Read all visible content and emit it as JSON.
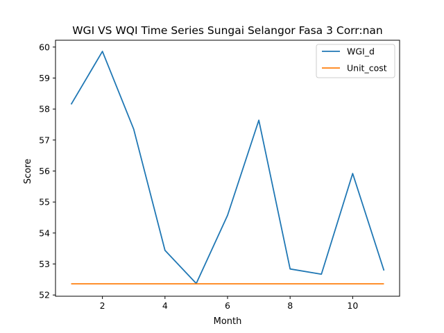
{
  "chart_data": {
    "type": "line",
    "title": "WGI VS WQI Time Series Sungai Selangor Fasa 3 Corr:nan",
    "xlabel": "Month",
    "ylabel": "Score",
    "xlim": [
      0.5,
      11.5
    ],
    "ylim": [
      51.96,
      60.22
    ],
    "x": [
      1,
      2,
      3,
      4,
      5,
      6,
      7,
      8,
      9,
      10,
      11
    ],
    "xticks": [
      2,
      4,
      6,
      8,
      10
    ],
    "yticks": [
      52,
      53,
      54,
      55,
      56,
      57,
      58,
      59,
      60
    ],
    "series": [
      {
        "name": "WGI_d",
        "color": "#1f77b4",
        "values": [
          58.15,
          59.86,
          57.35,
          53.44,
          52.37,
          54.57,
          57.64,
          52.84,
          52.67,
          55.92,
          52.79
        ]
      },
      {
        "name": "Unit_cost",
        "color": "#ff7f0e",
        "values": [
          52.36,
          52.36,
          52.36,
          52.36,
          52.36,
          52.36,
          52.36,
          52.36,
          52.36,
          52.36,
          52.36
        ]
      }
    ],
    "grid": false,
    "legend": "top-right"
  }
}
